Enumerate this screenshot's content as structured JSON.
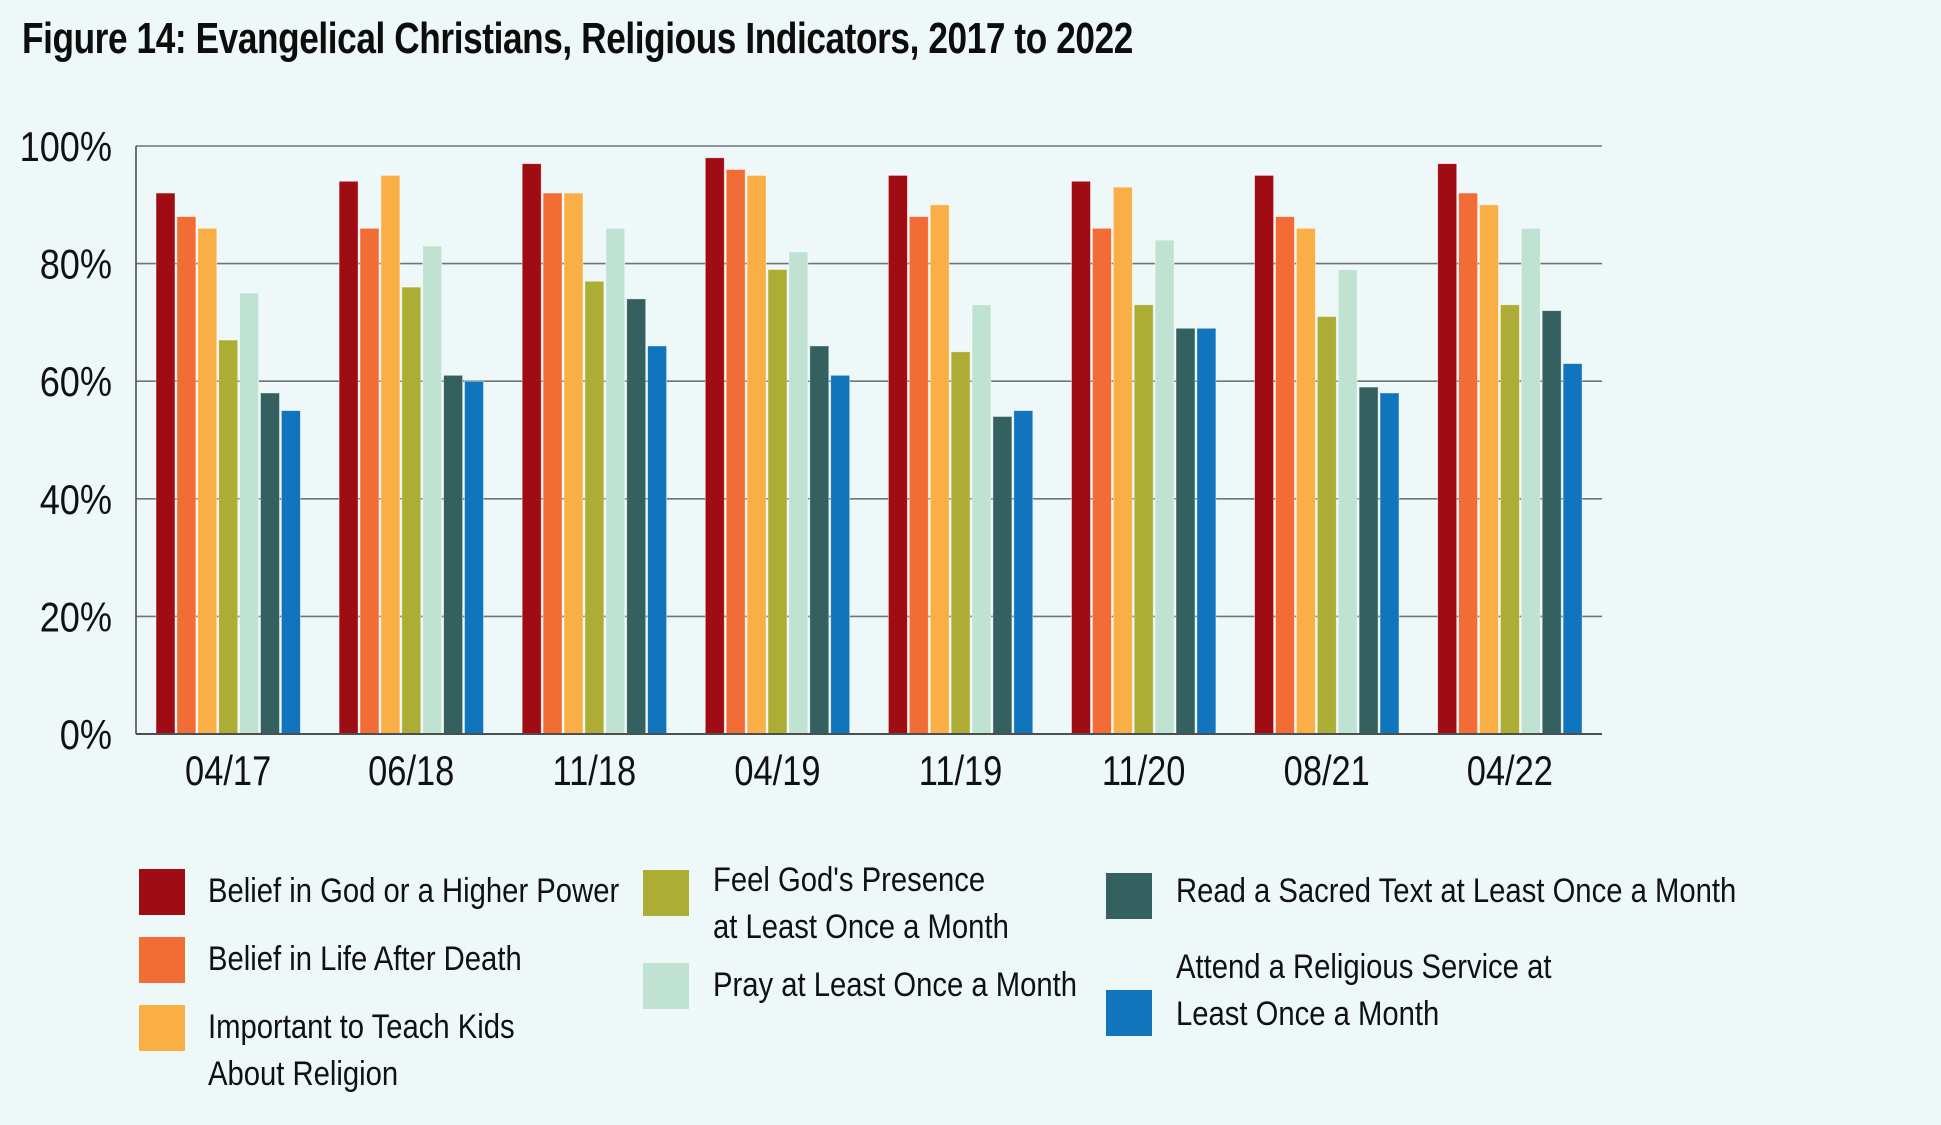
{
  "title": "Figure 14: Evangelical Christians, Religious Indicators, 2017 to 2022",
  "chart_data": {
    "type": "bar",
    "title": "Figure 14: Evangelical Christians, Religious Indicators, 2017 to 2022",
    "xlabel": "",
    "ylabel": "",
    "ylim": [
      0,
      100
    ],
    "yticks": [
      0,
      20,
      40,
      60,
      80,
      100
    ],
    "ytick_labels": [
      "0%",
      "20%",
      "40%",
      "60%",
      "80%",
      "100%"
    ],
    "grid": true,
    "legend_position": "bottom",
    "categories": [
      "04/17",
      "06/18",
      "11/18",
      "04/19",
      "11/19",
      "11/20",
      "08/21",
      "04/22"
    ],
    "series": [
      {
        "name": "Belief in God or a Higher Power",
        "color": "#A00C13",
        "values": [
          92,
          94,
          97,
          98,
          95,
          94,
          95,
          97
        ]
      },
      {
        "name": "Belief in Life After Death",
        "color": "#F26C35",
        "values": [
          88,
          86,
          92,
          96,
          88,
          86,
          88,
          92
        ]
      },
      {
        "name": "Important to Teach Kids About Religion",
        "color": "#FAAF46",
        "values": [
          86,
          95,
          92,
          95,
          90,
          93,
          86,
          90
        ]
      },
      {
        "name": "Feel God's Presence at Least Once a Month",
        "color": "#ADAC35",
        "values": [
          67,
          76,
          77,
          79,
          65,
          73,
          71,
          73
        ]
      },
      {
        "name": "Pray at Least Once a Month",
        "color": "#C0E2D3",
        "values": [
          75,
          83,
          86,
          82,
          73,
          84,
          79,
          86
        ]
      },
      {
        "name": "Read a Sacred Text at Least Once a Month",
        "color": "#34605F",
        "values": [
          58,
          61,
          74,
          66,
          54,
          69,
          59,
          72
        ]
      },
      {
        "name": "Attend a Religious Service at Least Once a Month",
        "color": "#1075BD",
        "values": [
          55,
          60,
          66,
          61,
          55,
          69,
          58,
          63
        ]
      }
    ]
  },
  "legend": [
    {
      "label": "Belief in God or a Higher Power",
      "color": "#A00C13"
    },
    {
      "label": "Belief in Life After Death",
      "color": "#F26C35"
    },
    {
      "label": "Important to Teach Kids\nAbout Religion",
      "color": "#FAAF46"
    },
    {
      "label": "Feel God's Presence\nat Least Once a Month",
      "color": "#ADAC35"
    },
    {
      "label": "Pray at Least Once a Month",
      "color": "#C0E2D3"
    },
    {
      "label": "Read a Sacred Text at Least Once a Month",
      "color": "#34605F"
    },
    {
      "label": "Attend a Religious Service at\nLeast Once a Month",
      "color": "#1075BD"
    }
  ],
  "colors": {
    "background": "#EFF8F9",
    "gridline": "#6F7475",
    "axis": "#4A4F50"
  }
}
